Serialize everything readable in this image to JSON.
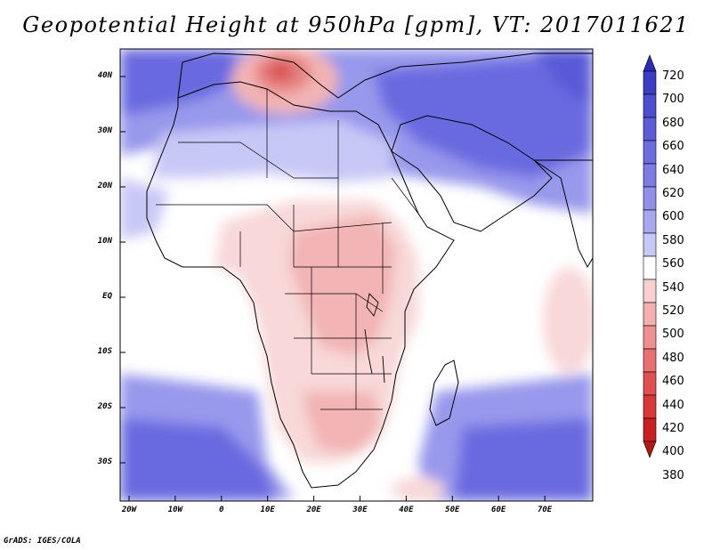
{
  "title": "Geopotential Height at 950hPa [gpm], VT: 2017011621",
  "credit": "GrADS: IGES/COLA",
  "lat_labels": [
    "40N",
    "30N",
    "20N",
    "10N",
    "EQ",
    "10S",
    "20S",
    "30S"
  ],
  "lon_labels": [
    "20W",
    "10W",
    "0",
    "10E",
    "20E",
    "30E",
    "40E",
    "50E",
    "60E",
    "70E"
  ],
  "colorbar": {
    "labels": [
      "720",
      "700",
      "680",
      "660",
      "640",
      "620",
      "600",
      "580",
      "560",
      "540",
      "520",
      "500",
      "480",
      "460",
      "440",
      "420",
      "400",
      "380"
    ],
    "colors": [
      "#2b2bb5",
      "#3c3cc4",
      "#4d4dd0",
      "#5c5cd8",
      "#6c6cdf",
      "#7c7ce5",
      "#9090ea",
      "#a8a8f0",
      "#c8c8f6",
      "#ffffff",
      "#f8d0d0",
      "#f4b0b0",
      "#ee9090",
      "#e87070",
      "#e05050",
      "#d83838",
      "#c82020",
      "#b01818"
    ]
  },
  "field_colors": {
    "ocean_far": "#6a6ae0",
    "ocean_mid": "#9898ec",
    "ocean_near": "#c8c8f6",
    "white": "#ffffff",
    "warm_light": "#f8d8d8",
    "warm_mid": "#f2b4b4",
    "warm_deep": "#e68080",
    "warm_core": "#d85050",
    "north_deep": "#5a5ad8"
  }
}
